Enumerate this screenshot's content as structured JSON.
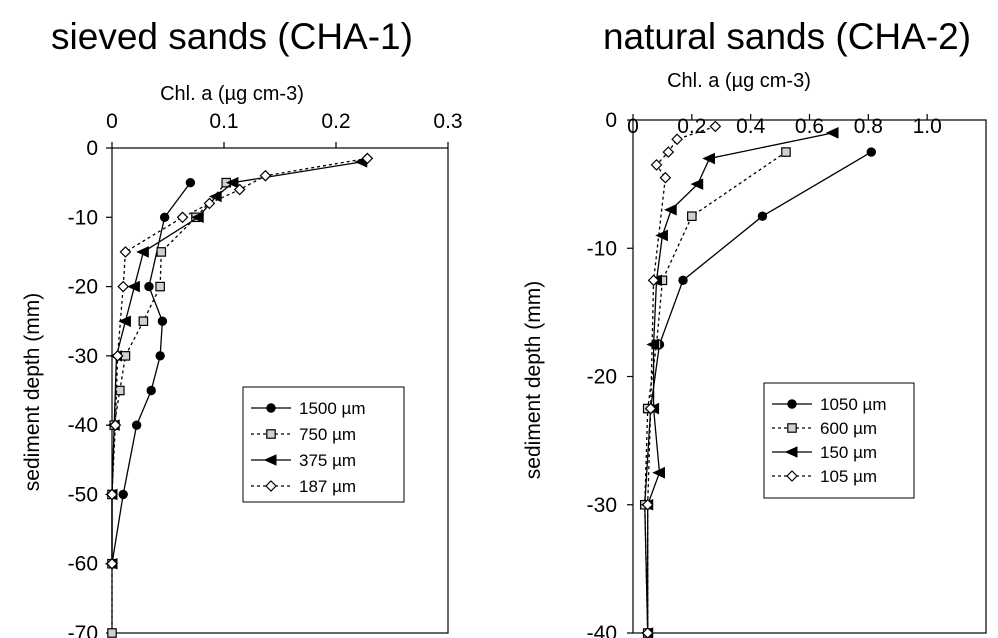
{
  "chart_data": [
    {
      "type": "line",
      "title": "sieved sands (CHA-1)",
      "xlabel": "Chl. a (µg cm-3)",
      "ylabel": "sediment depth (mm)",
      "xlim": [
        0,
        0.3
      ],
      "ylim": [
        -70,
        0
      ],
      "xticks": [
        "0",
        "0.1",
        "0.2",
        "0.3"
      ],
      "yticks": [
        "0",
        "-10",
        "-20",
        "-30",
        "-40",
        "-50",
        "-60",
        "-70"
      ],
      "x_axis_position": "top",
      "grid": false,
      "legend_position": "right-middle",
      "series": [
        {
          "name": "1500 µm",
          "marker": "circle",
          "dash": "solid",
          "points": [
            [
              0.07,
              -5
            ],
            [
              0.047,
              -10
            ],
            [
              0.033,
              -20
            ],
            [
              0.045,
              -25
            ],
            [
              0.043,
              -30
            ],
            [
              0.035,
              -35
            ],
            [
              0.022,
              -40
            ],
            [
              0.01,
              -50
            ],
            [
              0.0,
              -60
            ]
          ]
        },
        {
          "name": "750 µm",
          "marker": "square",
          "dash": "dashed",
          "points": [
            [
              0.102,
              -5
            ],
            [
              0.075,
              -10
            ],
            [
              0.044,
              -15
            ],
            [
              0.043,
              -20
            ],
            [
              0.028,
              -25
            ],
            [
              0.012,
              -30
            ],
            [
              0.007,
              -35
            ],
            [
              0.002,
              -40
            ],
            [
              0.0,
              -50
            ],
            [
              0.0,
              -60
            ],
            [
              0.0,
              -70
            ]
          ]
        },
        {
          "name": "375 µm",
          "marker": "triangle-left",
          "dash": "solid",
          "points": [
            [
              0.223,
              -2
            ],
            [
              0.108,
              -5
            ],
            [
              0.093,
              -7
            ],
            [
              0.077,
              -10
            ],
            [
              0.028,
              -15
            ],
            [
              0.02,
              -20
            ],
            [
              0.012,
              -25
            ],
            [
              0.004,
              -30
            ],
            [
              0.002,
              -40
            ],
            [
              0.0,
              -50
            ],
            [
              0.0,
              -60
            ]
          ]
        },
        {
          "name": "187 µm",
          "marker": "diamond",
          "dash": "dashed",
          "points": [
            [
              0.228,
              -1.5
            ],
            [
              0.137,
              -4
            ],
            [
              0.114,
              -6
            ],
            [
              0.087,
              -8
            ],
            [
              0.063,
              -10
            ],
            [
              0.012,
              -15
            ],
            [
              0.01,
              -20
            ],
            [
              0.005,
              -30
            ],
            [
              0.003,
              -40
            ],
            [
              0.0,
              -50
            ],
            [
              0.0,
              -60
            ]
          ]
        }
      ]
    },
    {
      "type": "line",
      "title": "natural sands (CHA-2)",
      "xlabel": "Chl. a (µg cm-3)",
      "ylabel": "sediment depth (mm)",
      "xlim": [
        0,
        1.2
      ],
      "ylim": [
        -40,
        0
      ],
      "xticks": [
        "0",
        "0.2",
        "0.4",
        "0.6",
        "0.8",
        "1.0"
      ],
      "yticks": [
        "0",
        "-10",
        "-20",
        "-30",
        "-40"
      ],
      "x_axis_position": "top",
      "grid": false,
      "legend_position": "right-middle",
      "series": [
        {
          "name": "1050 µm",
          "marker": "circle",
          "dash": "solid",
          "points": [
            [
              0.81,
              -2.5
            ],
            [
              0.44,
              -7.5
            ],
            [
              0.17,
              -12.5
            ],
            [
              0.09,
              -17.5
            ],
            [
              0.06,
              -22.5
            ],
            [
              0.04,
              -30
            ],
            [
              0.05,
              -40
            ]
          ]
        },
        {
          "name": "600 µm",
          "marker": "square",
          "dash": "dashed",
          "points": [
            [
              0.52,
              -2.5
            ],
            [
              0.2,
              -7.5
            ],
            [
              0.1,
              -12.5
            ],
            [
              0.08,
              -17.5
            ],
            [
              0.05,
              -22.5
            ],
            [
              0.04,
              -30
            ],
            [
              0.05,
              -40
            ]
          ]
        },
        {
          "name": "150 µm",
          "marker": "triangle-left",
          "dash": "solid",
          "points": [
            [
              0.68,
              -1
            ],
            [
              0.26,
              -3
            ],
            [
              0.22,
              -5
            ],
            [
              0.13,
              -7
            ],
            [
              0.1,
              -9
            ],
            [
              0.08,
              -12.5
            ],
            [
              0.07,
              -17.5
            ],
            [
              0.07,
              -22.5
            ],
            [
              0.09,
              -27.5
            ],
            [
              0.05,
              -30
            ],
            [
              0.05,
              -40
            ]
          ]
        },
        {
          "name": "105 µm",
          "marker": "diamond",
          "dash": "dashed",
          "points": [
            [
              0.28,
              -0.5
            ],
            [
              0.15,
              -1.5
            ],
            [
              0.12,
              -2.5
            ],
            [
              0.08,
              -3.5
            ],
            [
              0.11,
              -4.5
            ],
            [
              0.07,
              -12.5
            ],
            [
              0.06,
              -22.5
            ],
            [
              0.05,
              -30
            ],
            [
              0.05,
              -40
            ]
          ]
        }
      ]
    }
  ]
}
